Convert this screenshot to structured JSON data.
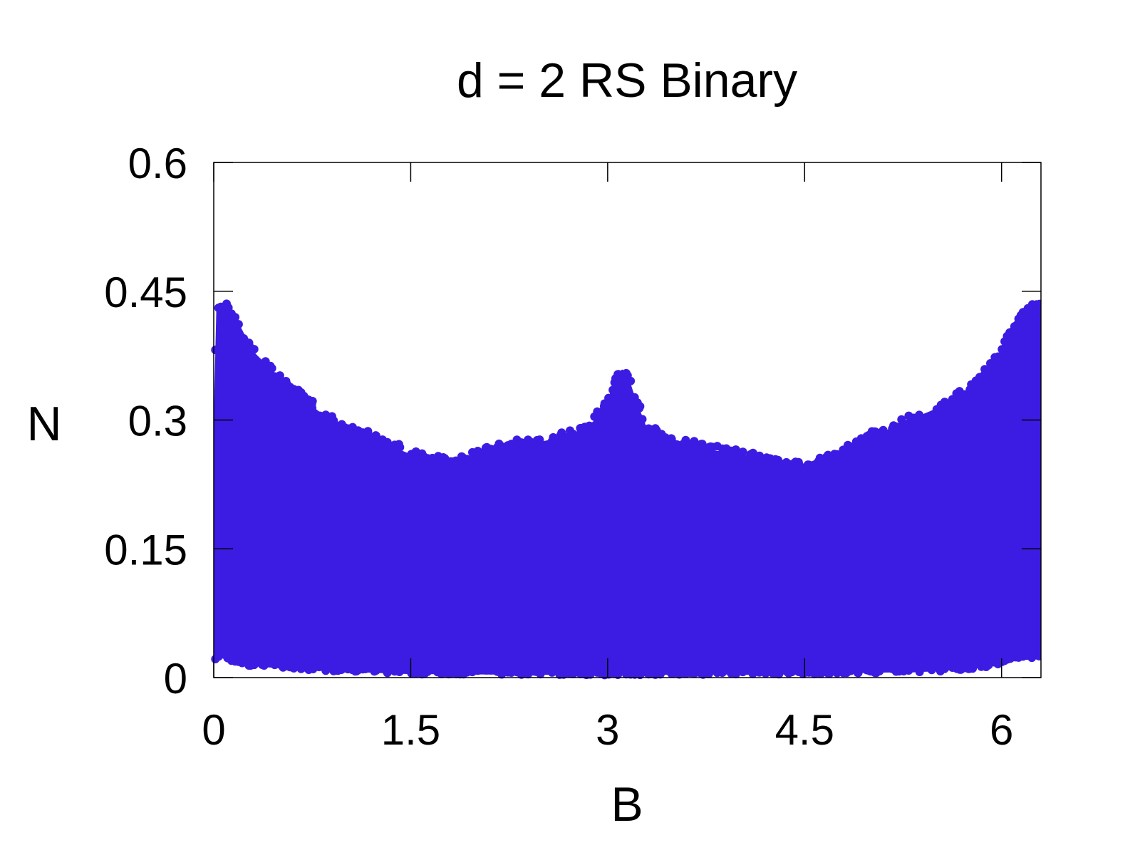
{
  "chart_data": {
    "type": "scatter",
    "title": "d = 2 RS Binary",
    "xlabel": "B",
    "ylabel": "N",
    "xlim": [
      0,
      6.3
    ],
    "ylim": [
      0,
      0.6
    ],
    "x_ticks": [
      0,
      1.5,
      3,
      4.5,
      6
    ],
    "x_tick_labels": [
      "0",
      "1.5",
      "3",
      "4.5",
      "6"
    ],
    "y_ticks": [
      0,
      0.15,
      0.3,
      0.45,
      0.6
    ],
    "y_tick_labels": [
      "0",
      "0.15",
      "0.3",
      "0.45",
      "0.6"
    ],
    "grid": false,
    "legend": "none",
    "series": [
      {
        "color": "#3c1ce3",
        "marker": "filled-circle",
        "upper_envelope": {
          "x": [
            0.0,
            0.02,
            0.1,
            0.2,
            0.3,
            0.5,
            0.8,
            1.0,
            1.2,
            1.5,
            1.8,
            2.0,
            2.2,
            2.5,
            2.8,
            2.9,
            3.0,
            3.05,
            3.1,
            3.15,
            3.2,
            3.3,
            3.5,
            3.8,
            4.0,
            4.3,
            4.5,
            4.7,
            5.0,
            5.3,
            5.6,
            5.8,
            6.0,
            6.1,
            6.2,
            6.28
          ],
          "y": [
            0.3,
            0.43,
            0.43,
            0.41,
            0.38,
            0.35,
            0.31,
            0.29,
            0.28,
            0.26,
            0.25,
            0.26,
            0.27,
            0.275,
            0.285,
            0.3,
            0.32,
            0.34,
            0.36,
            0.355,
            0.33,
            0.29,
            0.275,
            0.265,
            0.26,
            0.25,
            0.245,
            0.255,
            0.28,
            0.3,
            0.32,
            0.34,
            0.38,
            0.41,
            0.43,
            0.44
          ]
        },
        "lower_envelope": {
          "x": [
            0.0,
            0.05,
            0.1,
            0.2,
            0.4,
            0.8,
            1.5,
            3.0,
            4.5,
            5.5,
            5.9,
            6.1,
            6.2,
            6.28
          ],
          "y": [
            0.02,
            0.025,
            0.02,
            0.015,
            0.012,
            0.008,
            0.004,
            0.003,
            0.004,
            0.007,
            0.012,
            0.02,
            0.025,
            0.02
          ]
        }
      }
    ]
  }
}
